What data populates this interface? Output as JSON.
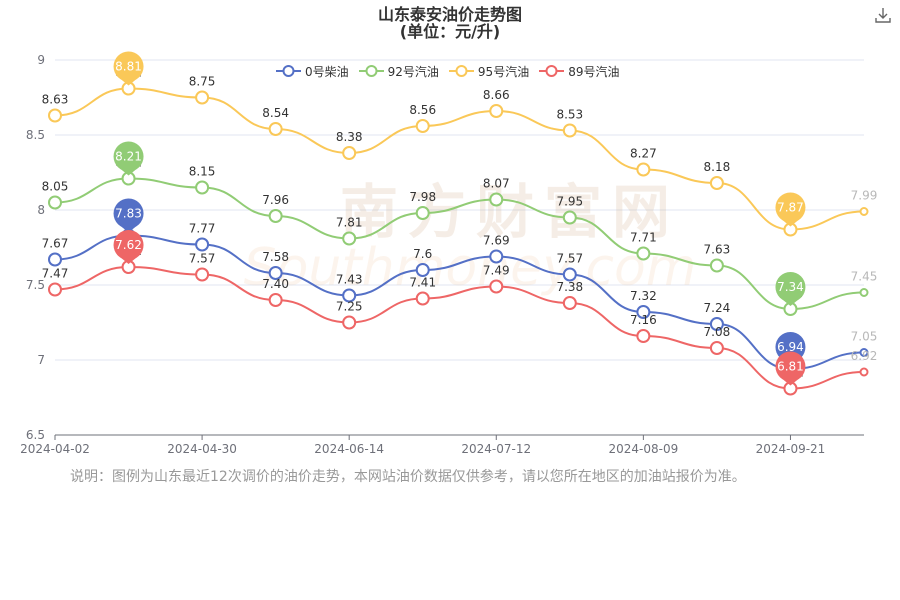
{
  "title": "山东泰安油价走势图",
  "subtitle": "(单位：元/升)",
  "download_icon": "download-icon",
  "note": "说明：图例为山东最近12次调价的油价走势，本网站油价数据仅供参考，请以您所在地区的加油站报价为准。",
  "legend": [
    "0号柴油",
    "92号汽油",
    "95号汽油",
    "89号汽油"
  ],
  "watermark": {
    "cn": "南方财富网",
    "en": "Southmoney.com"
  },
  "chart_data": {
    "type": "line",
    "title": "山东泰安油价走势图",
    "subtitle": "(单位：元/升)",
    "xlabel": "",
    "ylabel": "",
    "ylim": [
      6.5,
      9
    ],
    "y_ticks": [
      "6.5",
      "7",
      "7.5",
      "8",
      "8.5",
      "9"
    ],
    "x_tick_labels": [
      "2024-04-02",
      "2024-04-30",
      "2024-06-14",
      "2024-07-12",
      "2024-08-09",
      "2024-09-21"
    ],
    "x_tick_index": [
      0,
      2,
      4,
      6,
      8,
      10
    ],
    "legend_position": "top",
    "series": [
      {
        "name": "0号柴油",
        "color": "#5470c6",
        "values": [
          7.67,
          7.83,
          7.77,
          7.58,
          7.43,
          7.6,
          7.69,
          7.57,
          7.32,
          7.24,
          6.94,
          7.05
        ],
        "labels": [
          "7.67",
          "7.83",
          "7.77",
          "7.58",
          "7.43",
          "7.6",
          "7.69",
          "7.57",
          "7.32",
          "7.24",
          "6.94",
          "7.05"
        ],
        "max_pin": {
          "index": 1,
          "label": "7.83"
        },
        "min_pin": {
          "index": 10,
          "label": "6.94"
        }
      },
      {
        "name": "92号汽油",
        "color": "#91cc75",
        "values": [
          8.05,
          8.21,
          8.15,
          7.96,
          7.81,
          7.98,
          8.07,
          7.95,
          7.71,
          7.63,
          7.34,
          7.45
        ],
        "labels": [
          "8.05",
          "8.21",
          "8.15",
          "7.96",
          "7.81",
          "7.98",
          "8.07",
          "7.95",
          "7.71",
          "7.63",
          "7.34",
          "7.45"
        ],
        "max_pin": {
          "index": 1,
          "label": "8.21"
        },
        "min_pin": {
          "index": 10,
          "label": "7.34"
        }
      },
      {
        "name": "95号汽油",
        "color": "#fac858",
        "values": [
          8.63,
          8.81,
          8.75,
          8.54,
          8.38,
          8.56,
          8.66,
          8.53,
          8.27,
          8.18,
          7.87,
          7.99
        ],
        "labels": [
          "8.63",
          "8.81",
          "8.75",
          "8.54",
          "8.38",
          "8.56",
          "8.66",
          "8.53",
          "8.27",
          "8.18",
          "7.87",
          "7.99"
        ],
        "max_pin": {
          "index": 1,
          "label": "8.81"
        },
        "min_pin": {
          "index": 10,
          "label": "7.87"
        }
      },
      {
        "name": "89号汽油",
        "color": "#ee6666",
        "values": [
          7.47,
          7.62,
          7.57,
          7.4,
          7.25,
          7.41,
          7.49,
          7.38,
          7.16,
          7.08,
          6.81,
          6.92
        ],
        "labels": [
          "7.47",
          "7.62",
          "7.57",
          "7.40",
          "7.25",
          "7.41",
          "7.49",
          "7.38",
          "7.16",
          "7.08",
          "6.81",
          "6.92"
        ],
        "max_pin": {
          "index": 1,
          "label": "7.62"
        },
        "min_pin": {
          "index": 10,
          "label": "6.81"
        }
      }
    ]
  }
}
